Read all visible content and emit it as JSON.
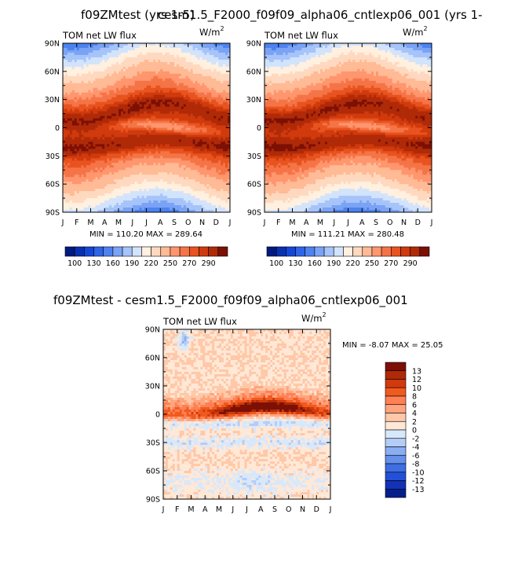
{
  "figure": {
    "top_title_left": "f09ZMtest  (yrs 1-5)",
    "top_title_right": "cesm1.5_F2000_f09f09_alpha06_cntlexp06_001  (yrs 1-",
    "bottom_title": "f09ZMtest - cesm1.5_F2000_f09f09_alpha06_cntlexp06_001"
  },
  "chart_data": [
    {
      "type": "heatmap",
      "id": "panel-1",
      "title": "TOM net LW flux",
      "units_label": "W/m",
      "units_exponent": "2",
      "x_tick_labels": [
        "J",
        "F",
        "M",
        "A",
        "M",
        "J",
        "J",
        "A",
        "S",
        "O",
        "N",
        "D",
        "J"
      ],
      "y_tick_labels": [
        "90N",
        "60N",
        "30N",
        "0",
        "30S",
        "60S",
        "90S"
      ],
      "y_tick_values": [
        90,
        60,
        30,
        0,
        -30,
        -60,
        -90
      ],
      "ylim": [
        -90,
        90
      ],
      "min_label": "MIN = 110.20  MAX = 289.64",
      "colorbar_labels": [
        "100",
        "130",
        "160",
        "190",
        "220",
        "250",
        "270",
        "290"
      ],
      "colorbar_colors": [
        "#001a80",
        "#0a2fb0",
        "#1446d8",
        "#2e64e8",
        "#4d82f0",
        "#7aa3f5",
        "#a6c4fa",
        "#d2e3fc",
        "#fff0e0",
        "#ffd9bf",
        "#ffba96",
        "#ff966e",
        "#f57447",
        "#e8531f",
        "#d03a0d",
        "#b02a08",
        "#7c1004"
      ],
      "field": "base",
      "seed": 1
    },
    {
      "type": "heatmap",
      "id": "panel-2",
      "title": "TOM net LW flux",
      "units_label": "W/m",
      "units_exponent": "2",
      "x_tick_labels": [
        "J",
        "F",
        "M",
        "A",
        "M",
        "J",
        "J",
        "A",
        "S",
        "O",
        "N",
        "D",
        "J"
      ],
      "y_tick_labels": [
        "90N",
        "60N",
        "30N",
        "0",
        "30S",
        "60S",
        "90S"
      ],
      "y_tick_values": [
        90,
        60,
        30,
        0,
        -30,
        -60,
        -90
      ],
      "ylim": [
        -90,
        90
      ],
      "min_label": "MIN = 111.21  MAX = 280.48",
      "colorbar_labels": [
        "100",
        "130",
        "160",
        "190",
        "220",
        "250",
        "270",
        "290"
      ],
      "colorbar_colors": [
        "#001a80",
        "#0a2fb0",
        "#1446d8",
        "#2e64e8",
        "#4d82f0",
        "#7aa3f5",
        "#a6c4fa",
        "#d2e3fc",
        "#fff0e0",
        "#ffd9bf",
        "#ffba96",
        "#ff966e",
        "#f57447",
        "#e8531f",
        "#d03a0d",
        "#b02a08",
        "#7c1004"
      ],
      "field": "base",
      "seed": 2
    },
    {
      "type": "heatmap",
      "id": "panel-diff",
      "title": "TOM net LW flux",
      "units_label": "W/m",
      "units_exponent": "2",
      "x_tick_labels": [
        "J",
        "F",
        "M",
        "A",
        "M",
        "J",
        "J",
        "A",
        "S",
        "O",
        "N",
        "D",
        "J"
      ],
      "y_tick_labels": [
        "90N",
        "60N",
        "30N",
        "0",
        "30S",
        "60S",
        "90S"
      ],
      "y_tick_values": [
        90,
        60,
        30,
        0,
        -30,
        -60,
        -90
      ],
      "ylim": [
        -90,
        90
      ],
      "min_label": "MIN = -8.07  MAX =  25.05",
      "colorbar_labels": [
        "13",
        "12",
        "10",
        "8",
        "6",
        "4",
        "2",
        "0",
        "-2",
        "-4",
        "-6",
        "-8",
        "-10",
        "-12",
        "-13"
      ],
      "colorbar_colors": [
        "#7c1004",
        "#b02a08",
        "#d03a0d",
        "#f05a1e",
        "#ff8055",
        "#ffa57e",
        "#ffc8a8",
        "#ffe8d6",
        "#d8e8fb",
        "#b4cdf7",
        "#8aaef2",
        "#6590ec",
        "#3f6ee3",
        "#2250d6",
        "#1232b8",
        "#041f8a"
      ],
      "field": "diff",
      "seed": 3
    }
  ]
}
